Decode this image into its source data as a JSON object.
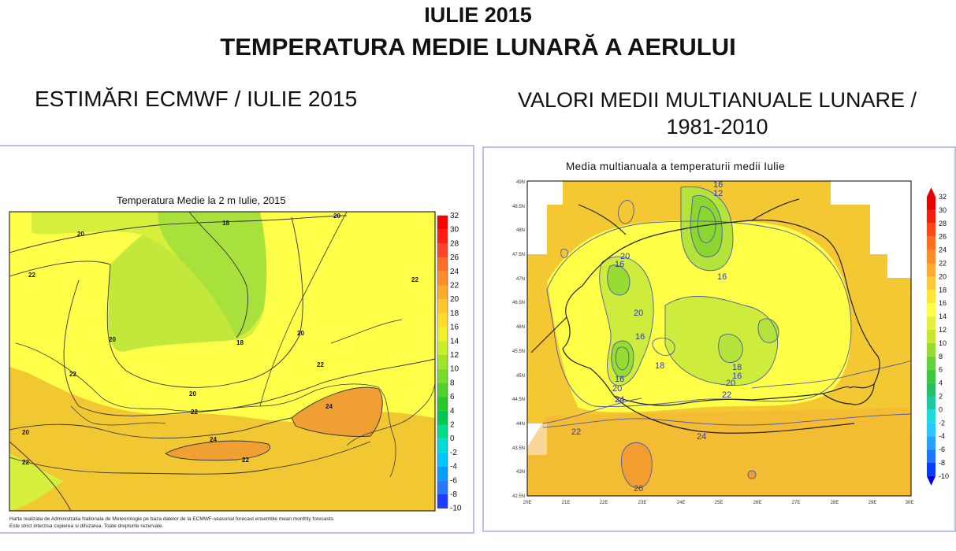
{
  "header": {
    "title_line1": "IULIE 2015",
    "title_line2": "TEMPERATURA MEDIE LUNARĂ A AERULUI",
    "left_subtitle": "ESTIMĂRI ECMWF / IULIE 2015",
    "right_subtitle_line1": "VALORI MEDII MULTIANUALE LUNARE /",
    "right_subtitle_line2": "1981-2010"
  },
  "left_map": {
    "title": "Temperatura Medie la 2 m Iulie, 2015",
    "contour_labels": [
      "18",
      "20",
      "20",
      "22",
      "22",
      "20",
      "18",
      "20",
      "22",
      "22",
      "20",
      "22",
      "24",
      "24",
      "22",
      "20",
      "22"
    ],
    "colorbar_ticks": [
      "32",
      "30",
      "28",
      "26",
      "24",
      "22",
      "20",
      "18",
      "16",
      "14",
      "12",
      "10",
      "8",
      "6",
      "4",
      "2",
      "0",
      "-2",
      "-4",
      "-6",
      "-8",
      "-10"
    ],
    "note_line1": "Harta realizata de Administratia Nationala de Meteorologie pe baza datelor de la ECMWF-seasonal forecast ensemble mean monthly forecasts.",
    "note_line2": "Este strict interzisa copierea si difuzarea. Toate drepturile rezervate."
  },
  "right_map": {
    "title": "Media multianuala a temperaturii medii Iulie",
    "lat_labels": [
      "49N",
      "48.5N",
      "48N",
      "47.5N",
      "47N",
      "46.5N",
      "46N",
      "45.5N",
      "45N",
      "44.5N",
      "44N",
      "43.5N",
      "43N",
      "42.5N"
    ],
    "lon_labels": [
      "20E",
      "21E",
      "22E",
      "23E",
      "24E",
      "25E",
      "26E",
      "27E",
      "28E",
      "29E",
      "30E"
    ],
    "contour_labels": [
      "16",
      "12",
      "20",
      "16",
      "16",
      "20",
      "16",
      "18",
      "16",
      "18",
      "16",
      "20",
      "20",
      "22",
      "24",
      "22",
      "24",
      "26"
    ],
    "colorbar_ticks": [
      "32",
      "30",
      "28",
      "26",
      "24",
      "22",
      "20",
      "18",
      "16",
      "14",
      "12",
      "10",
      "8",
      "6",
      "4",
      "2",
      "0",
      "-2",
      "-4",
      "-6",
      "-8",
      "-10"
    ]
  },
  "colors": {
    "ramp": [
      "#0000e6",
      "#0a3cff",
      "#1e78ff",
      "#28a0ff",
      "#28c8ff",
      "#1edcdc",
      "#1ec8a0",
      "#28be64",
      "#3cc83c",
      "#64d23c",
      "#96dc32",
      "#c8e632",
      "#e6f03c",
      "#ffff46",
      "#ffe632",
      "#ffc83c",
      "#ffaa32",
      "#ff8c28",
      "#ff6e1e",
      "#ff4614",
      "#f01e0a",
      "#e60000"
    ],
    "left_ramp": [
      "#0000ff",
      "#1e3cff",
      "#2878ff",
      "#00a0ff",
      "#00c8ff",
      "#00dcdc",
      "#00dc8c",
      "#00c850",
      "#28c828",
      "#50d228",
      "#78dc28",
      "#a0e628",
      "#c8f028",
      "#f0f028",
      "#ffdc28",
      "#ffc828",
      "#ffaa28",
      "#ff8c28",
      "#ff6e28",
      "#ff4628",
      "#ff1e14",
      "#ff0000"
    ]
  }
}
